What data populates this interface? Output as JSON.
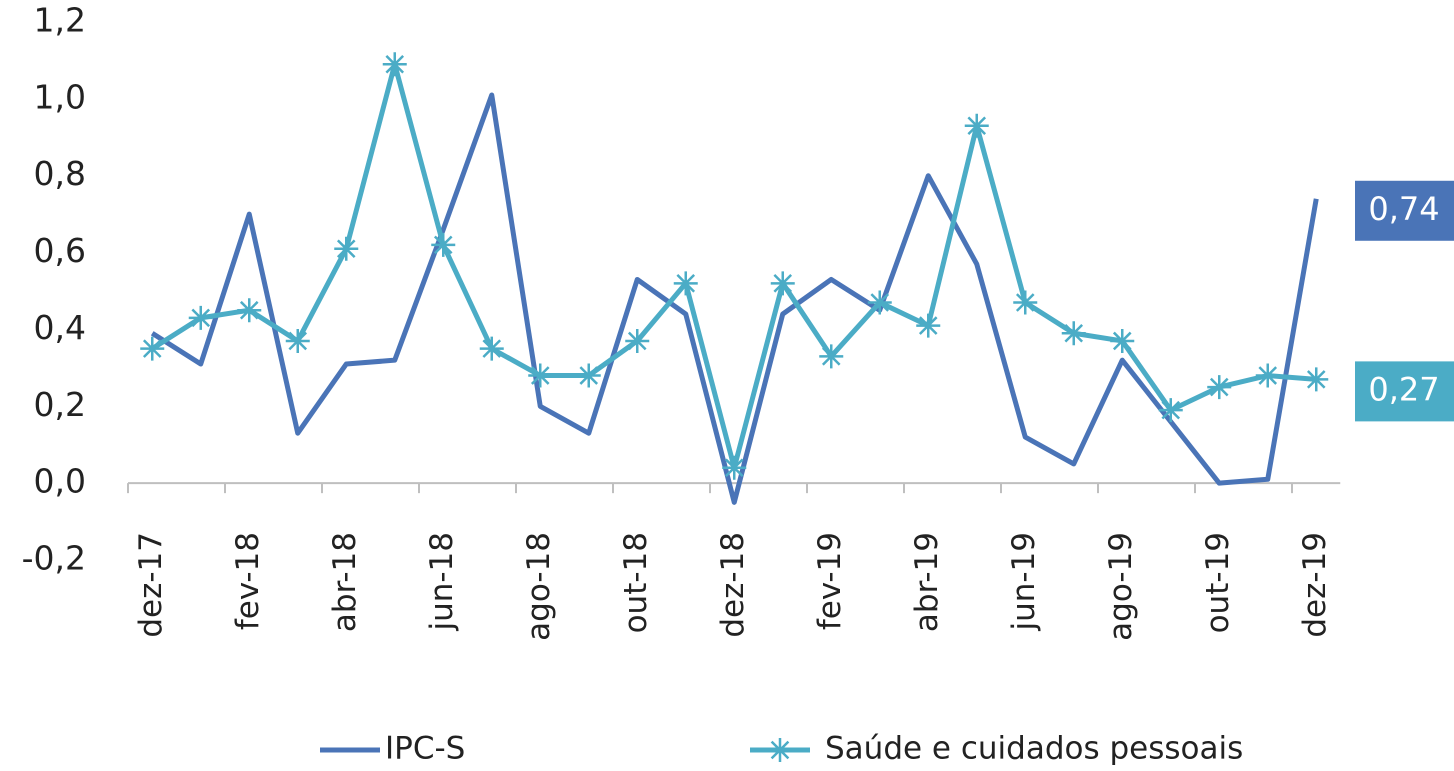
{
  "chart_data": {
    "type": "line",
    "categories": [
      "dez-17",
      null,
      "fev-18",
      null,
      "abr-18",
      null,
      "jun-18",
      null,
      "ago-18",
      null,
      "out-18",
      null,
      "dez-18",
      null,
      "fev-19",
      null,
      "abr-19",
      null,
      "jun-19",
      null,
      "ago-19",
      null,
      "out-19",
      null,
      "dez-19"
    ],
    "series": [
      {
        "name": "IPC-S",
        "color": "#4a74b7",
        "marker": "none",
        "values": [
          0.39,
          0.31,
          0.7,
          0.13,
          0.31,
          0.32,
          0.66,
          1.01,
          0.2,
          0.13,
          0.53,
          0.44,
          -0.05,
          0.44,
          0.53,
          0.45,
          0.8,
          0.57,
          0.12,
          0.05,
          0.32,
          0.16,
          0.0,
          0.01,
          0.74
        ],
        "value_labels": [
          null,
          null,
          null,
          null,
          null,
          null,
          null,
          null,
          null,
          null,
          null,
          null,
          null,
          null,
          null,
          null,
          null,
          null,
          null,
          null,
          null,
          null,
          null,
          null,
          "0,74"
        ]
      },
      {
        "name": "Saúde e cuidados pessoais",
        "color": "#4bacc6",
        "marker": "asterisk",
        "values": [
          0.35,
          0.43,
          0.45,
          0.37,
          0.61,
          1.09,
          0.62,
          0.35,
          0.28,
          0.28,
          0.37,
          0.52,
          0.04,
          0.52,
          0.33,
          0.47,
          0.41,
          0.93,
          0.47,
          0.39,
          0.37,
          0.19,
          0.25,
          0.28,
          0.27
        ],
        "value_labels": [
          null,
          null,
          null,
          null,
          null,
          null,
          null,
          null,
          null,
          null,
          null,
          null,
          null,
          null,
          null,
          null,
          null,
          null,
          null,
          null,
          null,
          null,
          null,
          null,
          "0,27"
        ]
      }
    ],
    "ylim": [
      -0.2,
      1.2
    ],
    "yticks": [
      {
        "value": -0.2,
        "label": "-0,2"
      },
      {
        "value": 0,
        "label": "0,0"
      },
      {
        "value": 0.2,
        "label": "0,2"
      },
      {
        "value": 0.4,
        "label": "0,4"
      },
      {
        "value": 0.6,
        "label": "0,6"
      },
      {
        "value": 0.8,
        "label": "0,8"
      },
      {
        "value": 1.0,
        "label": "1,0"
      },
      {
        "value": 1.2,
        "label": "1,2"
      }
    ],
    "grid": false,
    "legend": "bottom"
  }
}
